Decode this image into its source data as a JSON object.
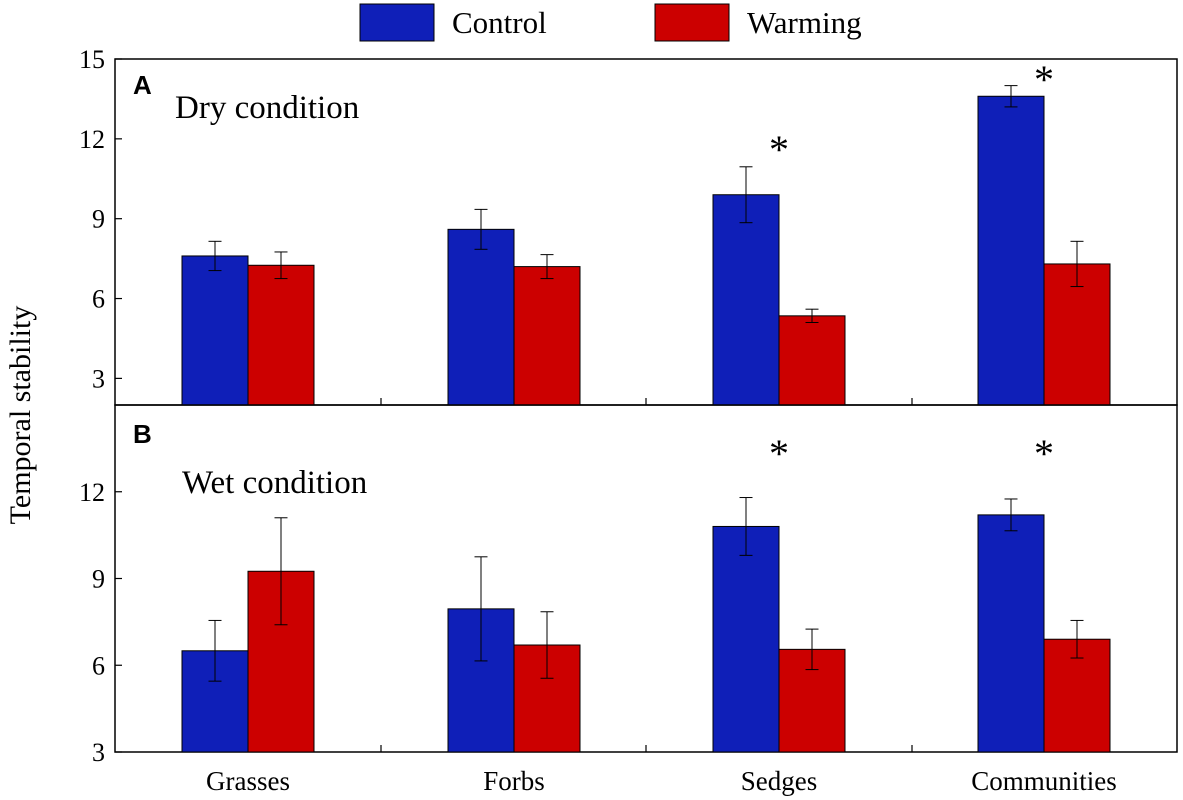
{
  "chart_data": {
    "type": "bar",
    "ylabel": "Temporal stability",
    "categories": [
      "Grasses",
      "Forbs",
      "Sedges",
      "Communities"
    ],
    "legend": [
      {
        "name": "Control",
        "color": "#0f1fb8"
      },
      {
        "name": "Warming",
        "color": "#cc0000"
      }
    ],
    "panels": [
      {
        "letter": "A",
        "title": "Dry condition",
        "ylim": [
          2,
          15
        ],
        "yticks": [
          3,
          6,
          9,
          12,
          15
        ],
        "series": [
          {
            "name": "Control",
            "values": [
              7.6,
              8.6,
              9.9,
              13.6
            ],
            "errors": [
              0.55,
              0.75,
              1.05,
              0.4
            ]
          },
          {
            "name": "Warming",
            "values": [
              7.25,
              7.2,
              5.35,
              7.3
            ],
            "errors": [
              0.5,
              0.45,
              0.25,
              0.85
            ]
          }
        ],
        "significant": [
          false,
          false,
          true,
          true
        ]
      },
      {
        "letter": "B",
        "title": "Wet condition",
        "ylim": [
          3,
          15
        ],
        "yticks": [
          3,
          6,
          9,
          12
        ],
        "series": [
          {
            "name": "Control",
            "values": [
              6.5,
              7.95,
              10.8,
              11.2
            ],
            "errors": [
              1.05,
              1.8,
              1.0,
              0.55
            ]
          },
          {
            "name": "Warming",
            "values": [
              9.25,
              6.7,
              6.55,
              6.9
            ],
            "errors": [
              1.85,
              1.15,
              0.7,
              0.65
            ]
          }
        ],
        "significant": [
          false,
          false,
          true,
          true
        ]
      }
    ],
    "significance_marker": "*"
  }
}
